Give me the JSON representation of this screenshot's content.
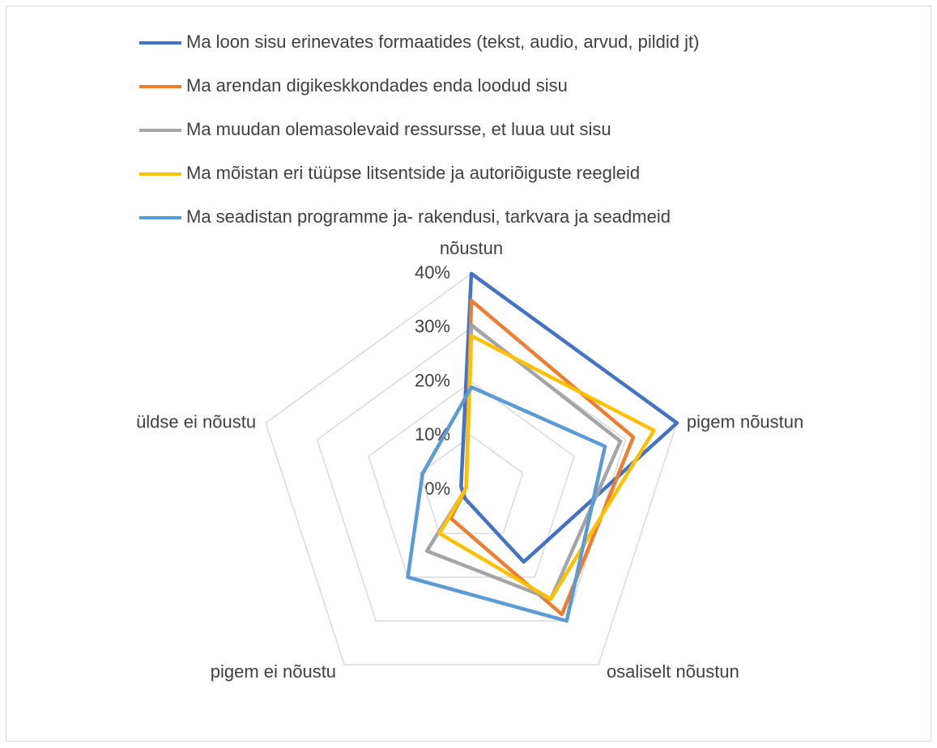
{
  "chart_data": {
    "type": "radar",
    "categories": [
      "nõustun",
      "pigem nõustun",
      "osaliselt nõustun",
      "pigem ei nõustu",
      "üldse ei nõustu"
    ],
    "series": [
      {
        "name": "Ma loon sisu erinevates formaatides (tekst, audio, arvud, pildid jt)",
        "color": "#4472c4",
        "values": [
          40,
          40,
          16.5,
          2,
          2
        ]
      },
      {
        "name": "Ma arendan digikeskkondades enda loodud sisu",
        "color": "#ed7d31",
        "values": [
          35,
          31.5,
          28.5,
          6.5,
          1
        ]
      },
      {
        "name": "Ma muudan olemasolevaid ressursse, et luua uut sisu",
        "color": "#a5a5a5",
        "values": [
          30.5,
          29,
          25,
          14,
          1
        ]
      },
      {
        "name": "Ma mõistan eri tüüpse litsentside ja autoriõiguste reegleid",
        "color": "#ffc000",
        "values": [
          28.5,
          35.5,
          25,
          10,
          1
        ]
      },
      {
        "name": "Ma seadistan programme ja- rakendusi, tarkvara ja seadmeid",
        "color": "#5b9bd5",
        "values": [
          19,
          26,
          30,
          20,
          9.5
        ]
      }
    ],
    "ylim": [
      0,
      40
    ],
    "yticks": [
      {
        "value": 0,
        "label": "0%"
      },
      {
        "value": 10,
        "label": "10%"
      },
      {
        "value": 20,
        "label": "20%"
      },
      {
        "value": 30,
        "label": "30%"
      },
      {
        "value": 40,
        "label": "40%"
      }
    ],
    "grid": true,
    "legend": "top"
  }
}
